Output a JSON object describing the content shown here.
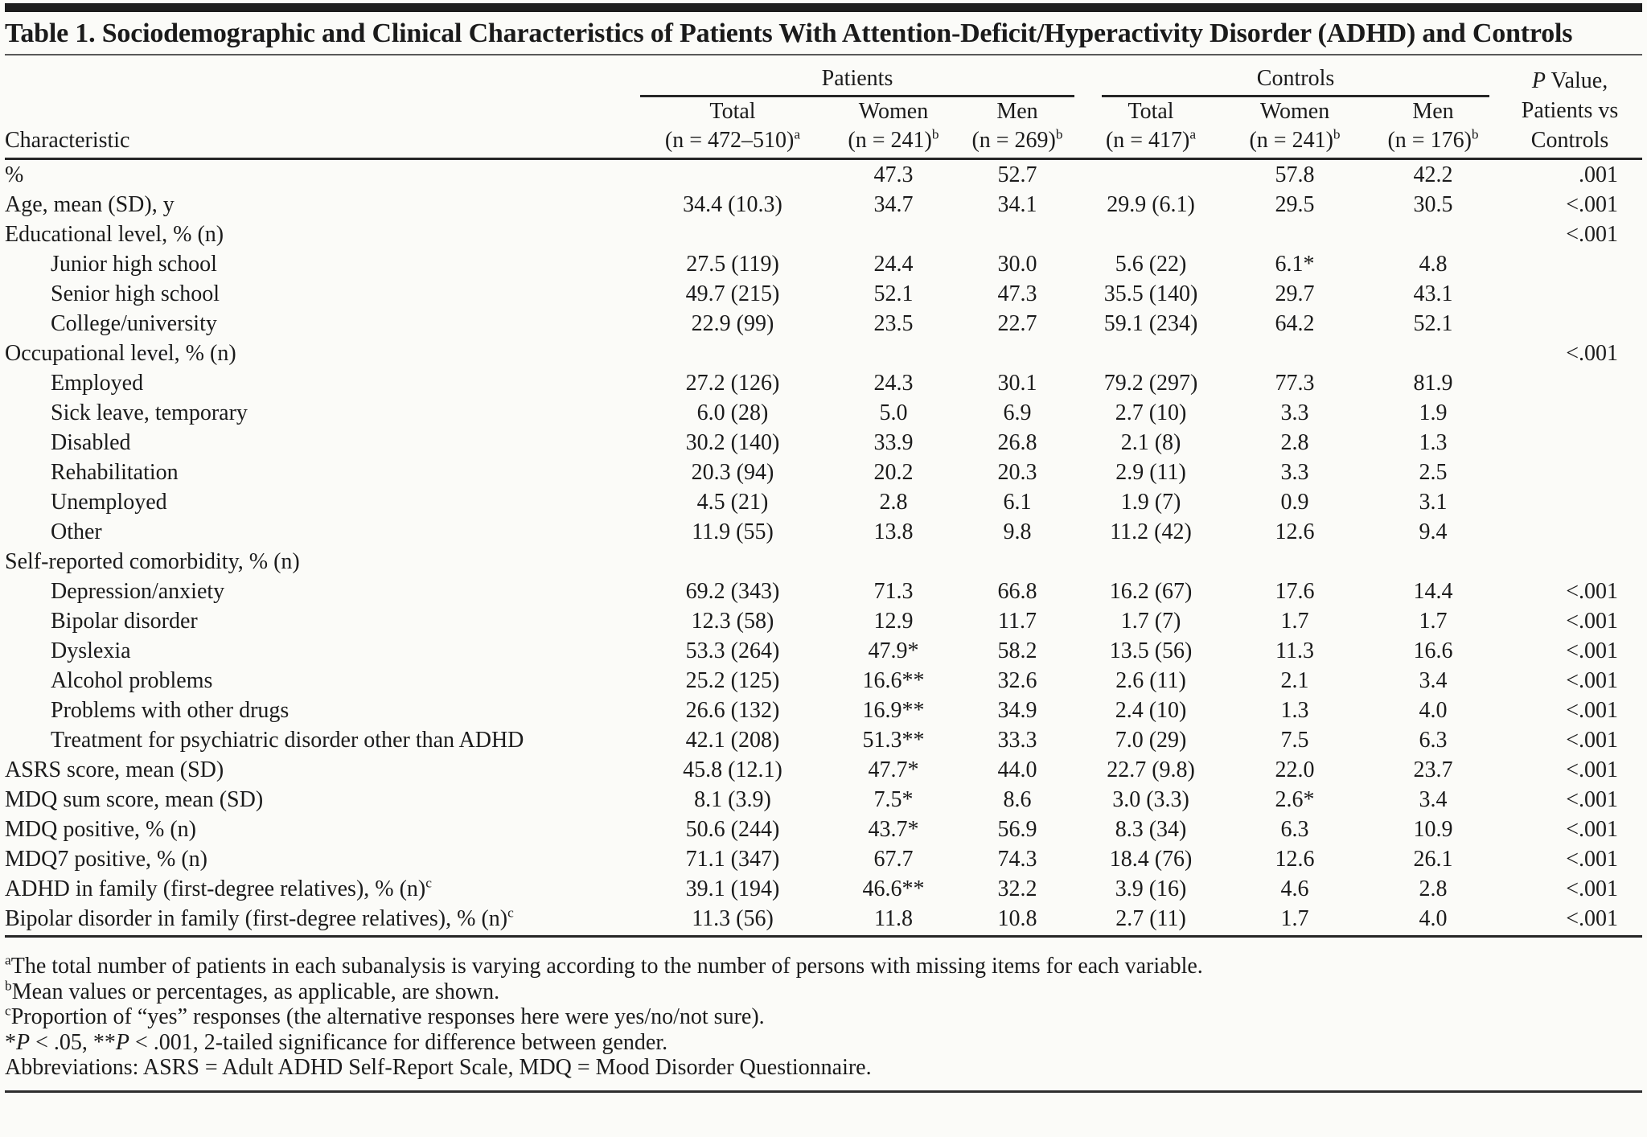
{
  "page": {
    "title": "Table 1. Sociodemographic and Clinical Characteristics of Patients With Attention-Deficit/Hyperactivity Disorder (ADHD) and Controls"
  },
  "table": {
    "characteristic_header": "Characteristic",
    "groups": [
      {
        "label": "Patients"
      },
      {
        "label": "Controls"
      }
    ],
    "p_header": {
      "p": "P",
      "value": " Value,",
      "line2": "Patients vs",
      "line3": "Controls"
    },
    "columns": [
      {
        "label": "Total",
        "n": "(n = 472–510)",
        "sup": "a"
      },
      {
        "label": "Women",
        "n": "(n = 241)",
        "sup": "b"
      },
      {
        "label": "Men",
        "n": "(n = 269)",
        "sup": "b"
      },
      {
        "label": "Total",
        "n": "(n = 417)",
        "sup": "a"
      },
      {
        "label": "Women",
        "n": "(n = 241)",
        "sup": "b"
      },
      {
        "label": "Men",
        "n": "(n = 176)",
        "sup": "b"
      }
    ],
    "rows": [
      {
        "label": "%",
        "indent": 0,
        "values": [
          "",
          "47.3",
          "52.7",
          "",
          "57.8",
          "42.2"
        ],
        "p": ".001"
      },
      {
        "label": "Age, mean (SD), y",
        "indent": 0,
        "values": [
          "34.4 (10.3)",
          "34.7",
          "34.1",
          "29.9 (6.1)",
          "29.5",
          "30.5"
        ],
        "p": "<.001"
      },
      {
        "label": "Educational level, % (n)",
        "indent": 0,
        "values": [
          "",
          "",
          "",
          "",
          "",
          ""
        ],
        "p": "<.001"
      },
      {
        "label": "Junior high school",
        "indent": 1,
        "values": [
          "27.5 (119)",
          "24.4",
          "30.0",
          "5.6 (22)",
          "6.1*",
          "4.8"
        ],
        "p": ""
      },
      {
        "label": "Senior high school",
        "indent": 1,
        "values": [
          "49.7 (215)",
          "52.1",
          "47.3",
          "35.5 (140)",
          "29.7",
          "43.1"
        ],
        "p": ""
      },
      {
        "label": "College/university",
        "indent": 1,
        "values": [
          "22.9 (99)",
          "23.5",
          "22.7",
          "59.1 (234)",
          "64.2",
          "52.1"
        ],
        "p": ""
      },
      {
        "label": "Occupational level, % (n)",
        "indent": 0,
        "values": [
          "",
          "",
          "",
          "",
          "",
          ""
        ],
        "p": "<.001"
      },
      {
        "label": "Employed",
        "indent": 1,
        "values": [
          "27.2 (126)",
          "24.3",
          "30.1",
          "79.2 (297)",
          "77.3",
          "81.9"
        ],
        "p": ""
      },
      {
        "label": "Sick leave, temporary",
        "indent": 1,
        "values": [
          "6.0 (28)",
          "5.0",
          "6.9",
          "2.7 (10)",
          "3.3",
          "1.9"
        ],
        "p": ""
      },
      {
        "label": "Disabled",
        "indent": 1,
        "values": [
          "30.2 (140)",
          "33.9",
          "26.8",
          "2.1 (8)",
          "2.8",
          "1.3"
        ],
        "p": ""
      },
      {
        "label": "Rehabilitation",
        "indent": 1,
        "values": [
          "20.3 (94)",
          "20.2",
          "20.3",
          "2.9 (11)",
          "3.3",
          "2.5"
        ],
        "p": ""
      },
      {
        "label": "Unemployed",
        "indent": 1,
        "values": [
          "4.5 (21)",
          "2.8",
          "6.1",
          "1.9 (7)",
          "0.9",
          "3.1"
        ],
        "p": ""
      },
      {
        "label": "Other",
        "indent": 1,
        "values": [
          "11.9 (55)",
          "13.8",
          "9.8",
          "11.2 (42)",
          "12.6",
          "9.4"
        ],
        "p": ""
      },
      {
        "label": "Self-reported comorbidity, % (n)",
        "indent": 0,
        "values": [
          "",
          "",
          "",
          "",
          "",
          ""
        ],
        "p": ""
      },
      {
        "label": "Depression/anxiety",
        "indent": 1,
        "values": [
          "69.2 (343)",
          "71.3",
          "66.8",
          "16.2 (67)",
          "17.6",
          "14.4"
        ],
        "p": "<.001"
      },
      {
        "label": "Bipolar disorder",
        "indent": 1,
        "values": [
          "12.3 (58)",
          "12.9",
          "11.7",
          "1.7 (7)",
          "1.7",
          "1.7"
        ],
        "p": "<.001"
      },
      {
        "label": "Dyslexia",
        "indent": 1,
        "values": [
          "53.3 (264)",
          "47.9*",
          "58.2",
          "13.5 (56)",
          "11.3",
          "16.6"
        ],
        "p": "<.001"
      },
      {
        "label": "Alcohol problems",
        "indent": 1,
        "values": [
          "25.2 (125)",
          "16.6**",
          "32.6",
          "2.6 (11)",
          "2.1",
          "3.4"
        ],
        "p": "<.001"
      },
      {
        "label": "Problems with other drugs",
        "indent": 1,
        "values": [
          "26.6 (132)",
          "16.9**",
          "34.9",
          "2.4 (10)",
          "1.3",
          "4.0"
        ],
        "p": "<.001"
      },
      {
        "label": "Treatment for psychiatric disorder other than ADHD",
        "indent": 1,
        "values": [
          "42.1 (208)",
          "51.3**",
          "33.3",
          "7.0 (29)",
          "7.5",
          "6.3"
        ],
        "p": "<.001"
      },
      {
        "label": "ASRS score, mean (SD)",
        "indent": 0,
        "values": [
          "45.8 (12.1)",
          "47.7*",
          "44.0",
          "22.7 (9.8)",
          "22.0",
          "23.7"
        ],
        "p": "<.001"
      },
      {
        "label": "MDQ sum score, mean (SD)",
        "indent": 0,
        "values": [
          "8.1 (3.9)",
          "7.5*",
          "8.6",
          "3.0 (3.3)",
          "2.6*",
          "3.4"
        ],
        "p": "<.001"
      },
      {
        "label": "MDQ positive, % (n)",
        "indent": 0,
        "values": [
          "50.6 (244)",
          "43.7*",
          "56.9",
          "8.3 (34)",
          "6.3",
          "10.9"
        ],
        "p": "<.001"
      },
      {
        "label": "MDQ7 positive, % (n)",
        "indent": 0,
        "values": [
          "71.1 (347)",
          "67.7",
          "74.3",
          "18.4 (76)",
          "12.6",
          "26.1"
        ],
        "p": "<.001"
      },
      {
        "label": "ADHD in family (first-degree relatives), % (n)",
        "label_sup": "c",
        "indent": 0,
        "values": [
          "39.1 (194)",
          "46.6**",
          "32.2",
          "3.9 (16)",
          "4.6",
          "2.8"
        ],
        "p": "<.001"
      },
      {
        "label": "Bipolar disorder in family (first-degree relatives), % (n)",
        "label_sup": "c",
        "indent": 0,
        "values": [
          "11.3 (56)",
          "11.8",
          "10.8",
          "2.7 (11)",
          "1.7",
          "4.0"
        ],
        "p": "<.001"
      }
    ]
  },
  "footnotes": [
    {
      "segments": [
        {
          "text": "a",
          "sup": true
        },
        {
          "text": "The total number of patients in each subanalysis is varying according to the number of persons with missing items for each variable."
        }
      ]
    },
    {
      "segments": [
        {
          "text": "b",
          "sup": true
        },
        {
          "text": "Mean values or percentages, as applicable, are shown."
        }
      ]
    },
    {
      "segments": [
        {
          "text": "c",
          "sup": true
        },
        {
          "text": "Proportion of “yes” responses (the alternative responses here were yes/no/not sure)."
        }
      ]
    },
    {
      "segments": [
        {
          "text": "*"
        },
        {
          "text": "P",
          "italic": true
        },
        {
          "text": " < .05, **"
        },
        {
          "text": "P",
          "italic": true
        },
        {
          "text": " < .001, 2-tailed significance for difference between gender."
        }
      ]
    },
    {
      "segments": [
        {
          "text": "Abbreviations: ASRS = Adult ADHD Self-Report Scale, MDQ = Mood Disorder Questionnaire."
        }
      ]
    }
  ]
}
